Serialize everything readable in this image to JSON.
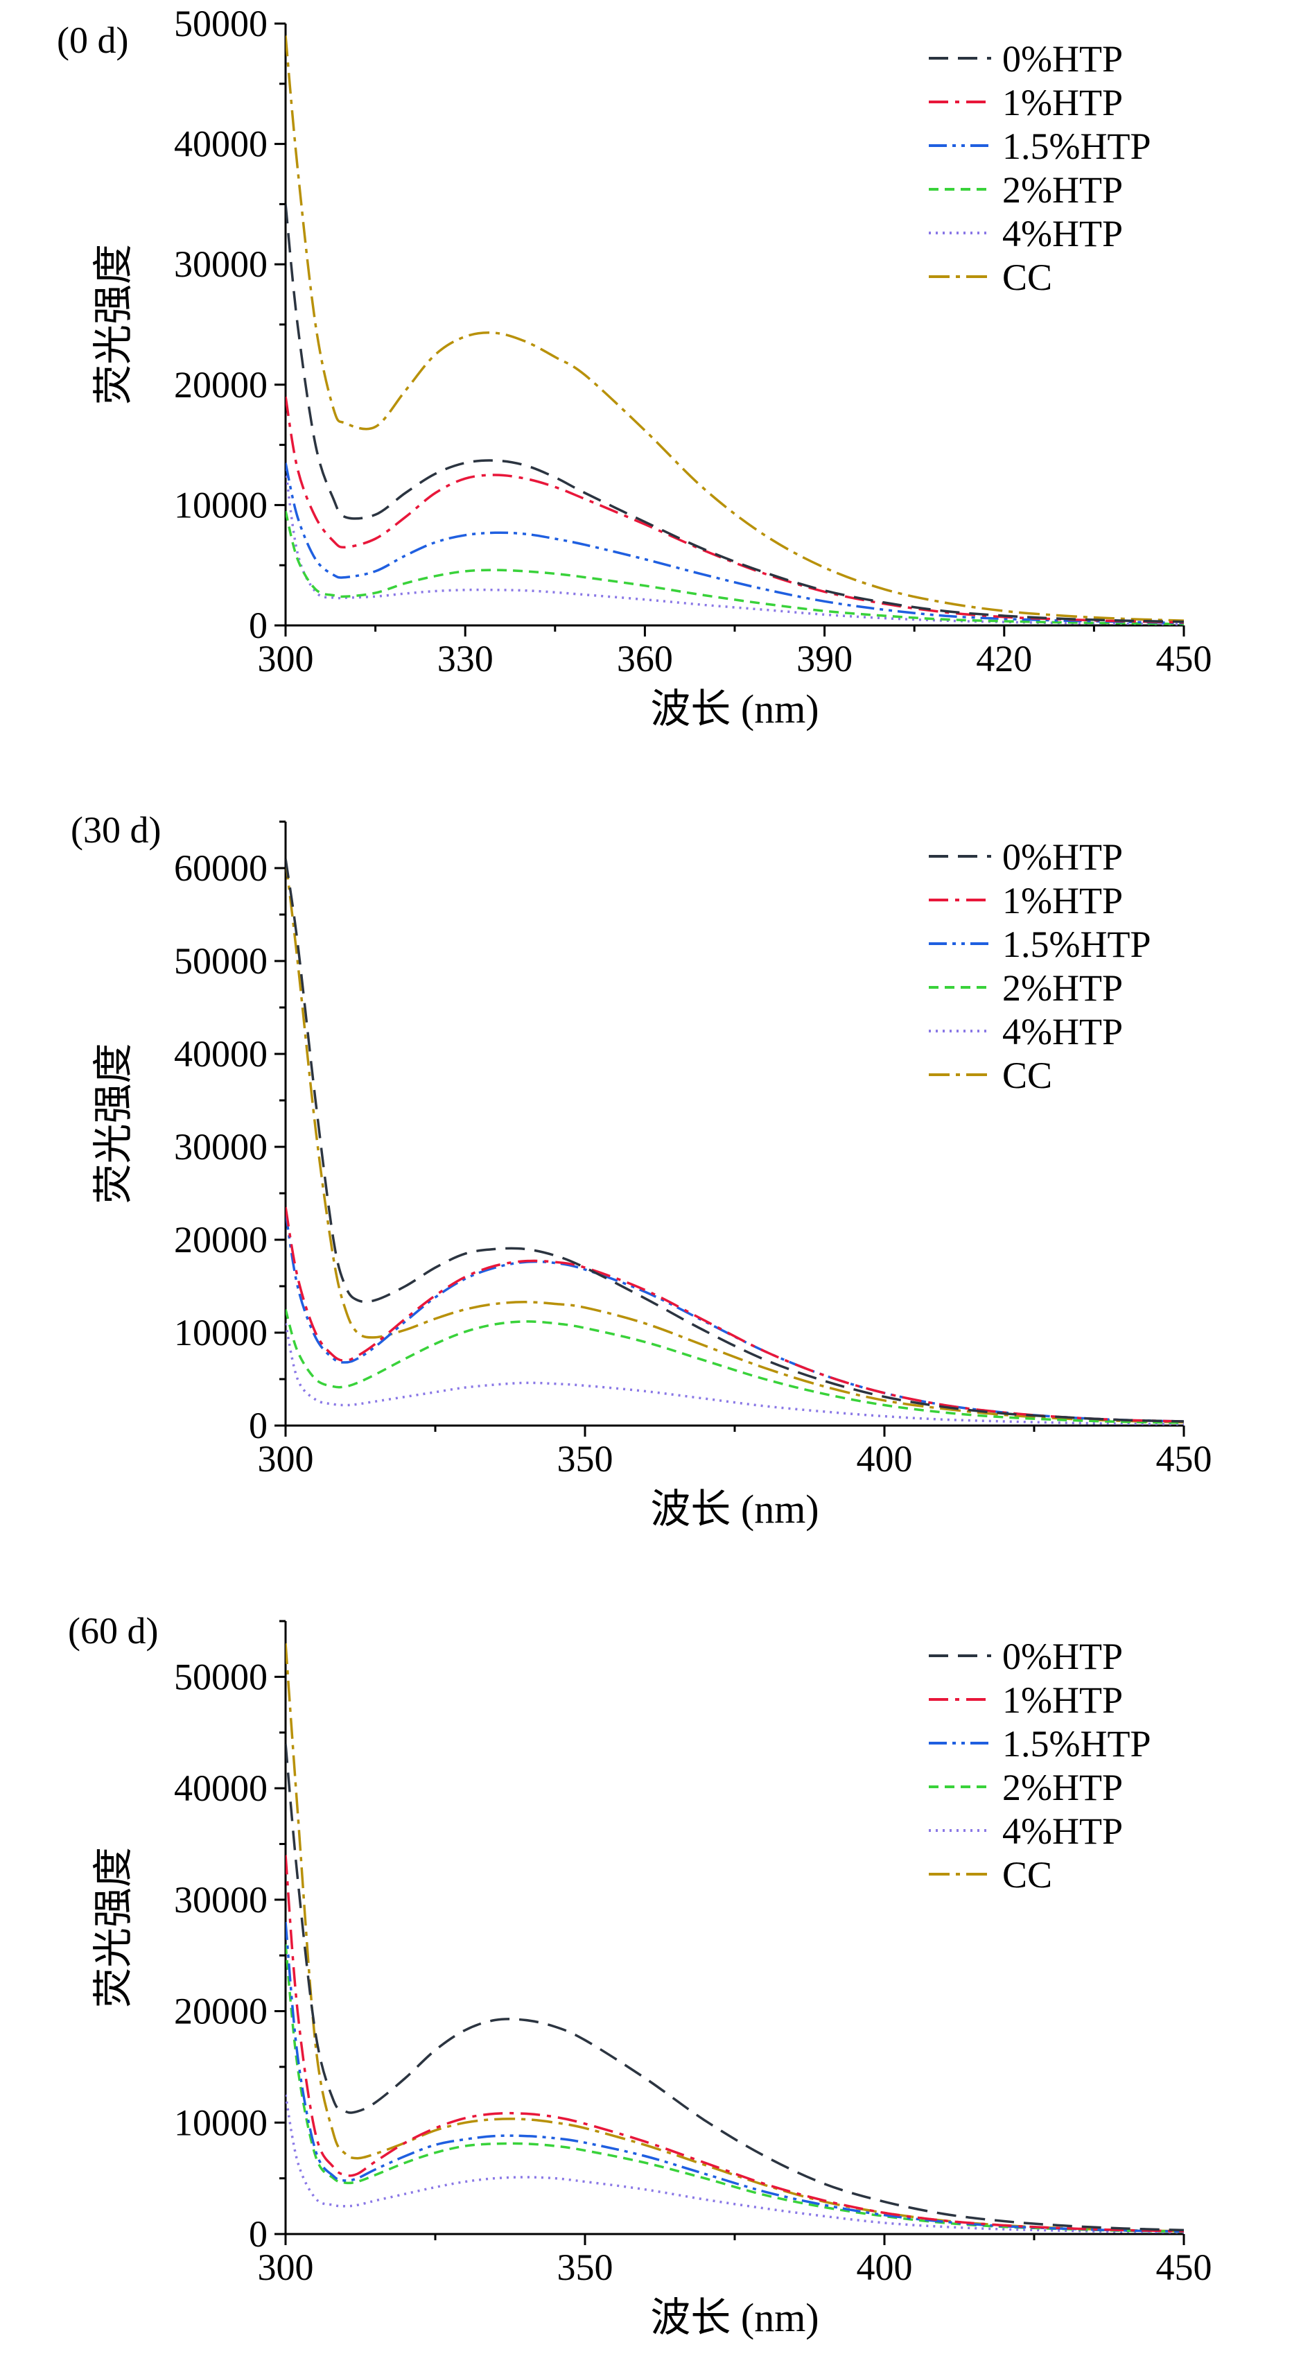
{
  "figure_title": "荧光强度 vs 波长 (0 d / 30 d / 60 d)",
  "colors": {
    "0%HTP": "#2b3440",
    "1%HTP": "#e8173a",
    "1.5%HTP": "#1f5fe0",
    "2%HTP": "#39d23a",
    "4%HTP": "#8a78e6",
    "CC": "#b8910a"
  },
  "chart_data": [
    {
      "type": "line",
      "panel_label": "(0 d)",
      "xlabel": "波长 (nm)",
      "ylabel": "荧光强度",
      "xlim": [
        300,
        450
      ],
      "ylim": [
        0,
        50000
      ],
      "x_ticks": [
        300,
        330,
        360,
        390,
        420,
        450
      ],
      "x_tick_labels": [
        "300",
        "330",
        "360",
        "390",
        "420",
        "450"
      ],
      "y_ticks": [
        0,
        10000,
        20000,
        30000,
        40000,
        50000
      ],
      "y_tick_labels": [
        "0",
        "10000",
        "20000",
        "30000",
        "40000",
        "50000"
      ],
      "legend": [
        "0%HTP",
        "1%HTP",
        "1.5%HTP",
        "2%HTP",
        "4%HTP",
        "CC"
      ],
      "legend_position": "top-right",
      "x": [
        300,
        302,
        305,
        308,
        310,
        315,
        320,
        325,
        330,
        335,
        340,
        345,
        350,
        360,
        370,
        380,
        390,
        400,
        410,
        420,
        430,
        440,
        450
      ],
      "series": [
        {
          "name": "0%HTP",
          "values": [
            35000,
            25000,
            15000,
            10500,
            9000,
            9200,
            11000,
            12600,
            13500,
            13700,
            13300,
            12300,
            11000,
            8600,
            6300,
            4400,
            2900,
            1900,
            1200,
            800,
            550,
            400,
            300
          ]
        },
        {
          "name": "1%HTP",
          "values": [
            19000,
            13000,
            9000,
            7000,
            6500,
            7200,
            9000,
            11000,
            12200,
            12500,
            12200,
            11500,
            10500,
            8400,
            6200,
            4300,
            2800,
            1800,
            1100,
            700,
            500,
            350,
            250
          ]
        },
        {
          "name": "1.5%HTP",
          "values": [
            13500,
            9000,
            5500,
            4200,
            4000,
            4500,
            5800,
            6900,
            7500,
            7700,
            7600,
            7200,
            6700,
            5500,
            4200,
            3000,
            2000,
            1300,
            800,
            550,
            400,
            300,
            200
          ]
        },
        {
          "name": "2%HTP",
          "values": [
            9500,
            5500,
            3000,
            2500,
            2400,
            2700,
            3500,
            4100,
            4500,
            4600,
            4500,
            4300,
            4000,
            3300,
            2500,
            1800,
            1200,
            800,
            500,
            350,
            250,
            180,
            120
          ]
        },
        {
          "name": "4%HTP",
          "values": [
            13000,
            6000,
            2800,
            2300,
            2300,
            2400,
            2650,
            2850,
            2950,
            2950,
            2900,
            2750,
            2550,
            2150,
            1700,
            1300,
            900,
            600,
            400,
            280,
            200,
            150,
            100
          ]
        },
        {
          "name": "CC",
          "values": [
            49000,
            38000,
            25000,
            18000,
            16800,
            16500,
            19500,
            22500,
            24000,
            24300,
            23600,
            22300,
            20800,
            16200,
            11300,
            7500,
            4800,
            3000,
            1900,
            1200,
            800,
            550,
            400
          ]
        }
      ]
    },
    {
      "type": "line",
      "panel_label": "(30 d)",
      "xlabel": "波长 (nm)",
      "ylabel": "荧光强度",
      "xlim": [
        300,
        450
      ],
      "ylim": [
        0,
        65000
      ],
      "x_ticks": [
        300,
        350,
        400,
        450
      ],
      "x_tick_labels": [
        "300",
        "350",
        "400",
        "450"
      ],
      "y_ticks": [
        0,
        10000,
        20000,
        30000,
        40000,
        50000,
        60000
      ],
      "y_tick_labels": [
        "0",
        "10000",
        "20000",
        "30000",
        "40000",
        "50000",
        "60000"
      ],
      "legend": [
        "0%HTP",
        "1%HTP",
        "1.5%HTP",
        "2%HTP",
        "4%HTP",
        "CC"
      ],
      "legend_position": "top-right",
      "x": [
        300,
        302,
        305,
        308,
        310,
        312,
        315,
        320,
        325,
        330,
        335,
        340,
        345,
        350,
        360,
        370,
        380,
        390,
        400,
        410,
        420,
        430,
        440,
        450
      ],
      "series": [
        {
          "name": "0%HTP",
          "values": [
            61000,
            52000,
            35000,
            20000,
            15000,
            13500,
            13500,
            15000,
            17000,
            18500,
            19000,
            19000,
            18300,
            17000,
            13700,
            10200,
            7100,
            4800,
            3100,
            2000,
            1300,
            900,
            600,
            450
          ]
        },
        {
          "name": "1%HTP",
          "values": [
            23500,
            16000,
            10000,
            7500,
            7000,
            7500,
            8800,
            11500,
            14000,
            16000,
            17200,
            17700,
            17600,
            17000,
            14600,
            11300,
            8000,
            5400,
            3500,
            2200,
            1400,
            900,
            600,
            450
          ]
        },
        {
          "name": "1.5%HTP",
          "values": [
            23000,
            15000,
            9500,
            7200,
            6800,
            7200,
            8500,
            11200,
            13800,
            15800,
            17000,
            17600,
            17500,
            16800,
            14400,
            11200,
            8000,
            5400,
            3500,
            2200,
            1400,
            900,
            600,
            450
          ]
        },
        {
          "name": "2%HTP",
          "values": [
            12500,
            8000,
            5000,
            4200,
            4200,
            4600,
            5500,
            7200,
            8800,
            10100,
            10900,
            11200,
            11000,
            10500,
            9000,
            7000,
            5000,
            3400,
            2200,
            1400,
            900,
            600,
            400,
            300
          ]
        },
        {
          "name": "4%HTP",
          "values": [
            11000,
            5000,
            2800,
            2300,
            2200,
            2300,
            2600,
            3100,
            3600,
            4100,
            4400,
            4600,
            4500,
            4300,
            3700,
            2900,
            2100,
            1500,
            1000,
            650,
            450,
            300,
            200,
            150
          ]
        },
        {
          "name": "CC",
          "values": [
            61000,
            50000,
            32000,
            18000,
            12500,
            10000,
            9500,
            10300,
            11500,
            12500,
            13100,
            13300,
            13100,
            12700,
            11000,
            8600,
            6200,
            4200,
            2700,
            1800,
            1150,
            750,
            500,
            350
          ]
        }
      ]
    },
    {
      "type": "line",
      "panel_label": "(60 d)",
      "xlabel": "波长 (nm)",
      "ylabel": "荧光强度",
      "xlim": [
        300,
        450
      ],
      "ylim": [
        0,
        55000
      ],
      "x_ticks": [
        300,
        350,
        400,
        450
      ],
      "x_tick_labels": [
        "300",
        "350",
        "400",
        "450"
      ],
      "y_ticks": [
        0,
        10000,
        20000,
        30000,
        40000,
        50000
      ],
      "y_tick_labels": [
        "0",
        "10000",
        "20000",
        "30000",
        "40000",
        "50000"
      ],
      "legend": [
        "0%HTP",
        "1%HTP",
        "1.5%HTP",
        "2%HTP",
        "4%HTP",
        "CC"
      ],
      "legend_position": "top-right",
      "x": [
        300,
        302,
        305,
        308,
        310,
        312,
        315,
        320,
        325,
        330,
        335,
        340,
        345,
        350,
        360,
        370,
        380,
        390,
        400,
        410,
        420,
        430,
        440,
        450
      ],
      "series": [
        {
          "name": "0%HTP",
          "values": [
            44000,
            32000,
            18000,
            12000,
            11000,
            11000,
            11800,
            14000,
            16500,
            18300,
            19200,
            19200,
            18600,
            17400,
            14000,
            10200,
            7000,
            4500,
            2900,
            1800,
            1150,
            750,
            500,
            350
          ]
        },
        {
          "name": "1%HTP",
          "values": [
            34000,
            20000,
            9000,
            6000,
            5300,
            5400,
            6500,
            8200,
            9500,
            10400,
            10800,
            10800,
            10500,
            9900,
            8300,
            6400,
            4500,
            3000,
            1900,
            1200,
            780,
            520,
            350,
            250
          ]
        },
        {
          "name": "1.5%HTP",
          "values": [
            28000,
            16000,
            7500,
            5200,
            4800,
            5000,
            5800,
            7000,
            8000,
            8500,
            8800,
            8800,
            8600,
            8200,
            7000,
            5400,
            3800,
            2600,
            1700,
            1100,
            700,
            480,
            320,
            230
          ]
        },
        {
          "name": "2%HTP",
          "values": [
            26000,
            15000,
            7000,
            5000,
            4600,
            4700,
            5300,
            6400,
            7300,
            7900,
            8100,
            8100,
            7900,
            7500,
            6400,
            5000,
            3500,
            2400,
            1600,
            1000,
            650,
            450,
            300,
            220
          ]
        },
        {
          "name": "4%HTP",
          "values": [
            12500,
            6500,
            3200,
            2600,
            2500,
            2600,
            3000,
            3600,
            4200,
            4700,
            5000,
            5100,
            5000,
            4700,
            4000,
            3100,
            2300,
            1600,
            1000,
            650,
            430,
            300,
            200,
            150
          ]
        },
        {
          "name": "CC",
          "values": [
            53000,
            38000,
            17000,
            9000,
            7200,
            6800,
            7200,
            8200,
            9300,
            10000,
            10300,
            10300,
            10000,
            9500,
            8000,
            6200,
            4400,
            2900,
            1900,
            1200,
            780,
            520,
            350,
            250
          ]
        }
      ]
    }
  ]
}
